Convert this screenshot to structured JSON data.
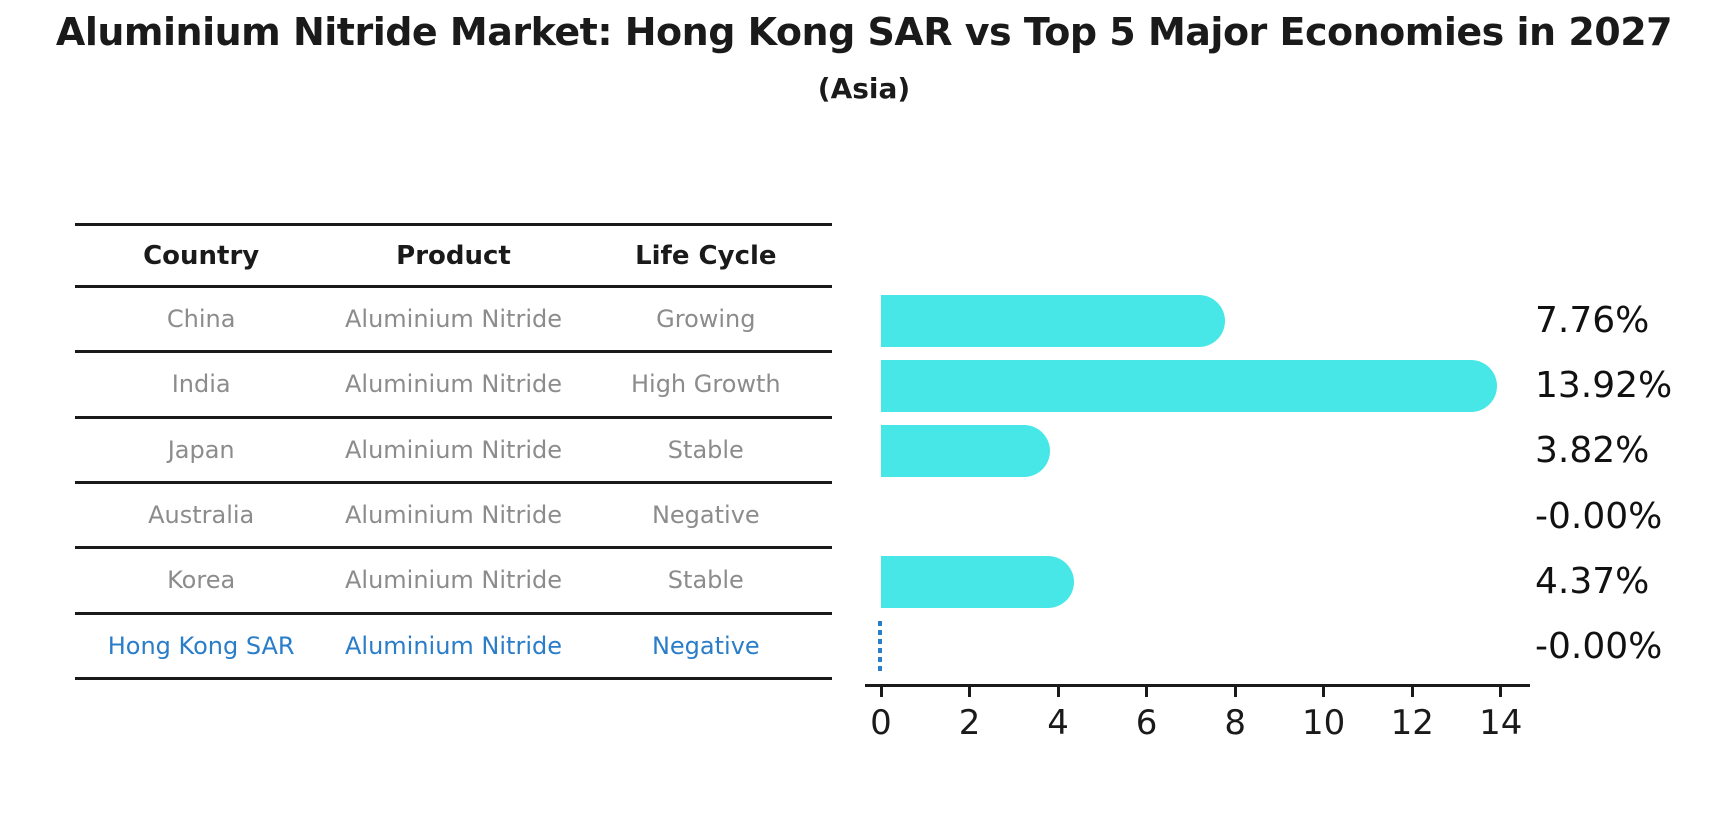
{
  "title": "Aluminium Nitride Market: Hong Kong SAR vs Top 5 Major Economies in 2027",
  "subtitle": "(Asia)",
  "table": {
    "headers": [
      "Country",
      "Product",
      "Life Cycle"
    ],
    "rows": [
      {
        "country": "China",
        "product": "Aluminium Nitride",
        "life_cycle": "Growing",
        "highlight": false
      },
      {
        "country": "India",
        "product": "Aluminium Nitride",
        "life_cycle": "High Growth",
        "highlight": false
      },
      {
        "country": "Japan",
        "product": "Aluminium Nitride",
        "life_cycle": "Stable",
        "highlight": false
      },
      {
        "country": "Australia",
        "product": "Aluminium Nitride",
        "life_cycle": "Negative",
        "highlight": false
      },
      {
        "country": "Korea",
        "product": "Aluminium Nitride",
        "life_cycle": "Stable",
        "highlight": false
      },
      {
        "country": "Hong Kong SAR",
        "product": "Aluminium Nitride",
        "life_cycle": "Negative",
        "highlight": true
      }
    ]
  },
  "chart_data": {
    "type": "bar",
    "orientation": "horizontal",
    "title": "Aluminium Nitride Market: Hong Kong SAR vs Top 5 Major Economies in 2027 (Asia)",
    "categories": [
      "China",
      "India",
      "Japan",
      "Australia",
      "Korea",
      "Hong Kong SAR"
    ],
    "values": [
      7.76,
      13.92,
      3.82,
      -0.0,
      4.37,
      -0.0
    ],
    "value_labels": [
      "7.76%",
      "13.92%",
      "3.82%",
      "-0.00%",
      "4.37%",
      "-0.00%"
    ],
    "x_ticks": [
      0,
      2,
      4,
      6,
      8,
      10,
      12,
      14
    ],
    "xlim": [
      -0.4,
      14.7
    ],
    "xlabel": "",
    "ylabel": "",
    "grid": false,
    "legend": false,
    "zero_marker_category": "Hong Kong SAR"
  },
  "colors": {
    "bar": "#47e7e7",
    "highlight_blue": "#2a7dc8",
    "text_dark": "#1a1a1a",
    "text_gray": "#8c8c8c",
    "background": "#ffffff"
  }
}
